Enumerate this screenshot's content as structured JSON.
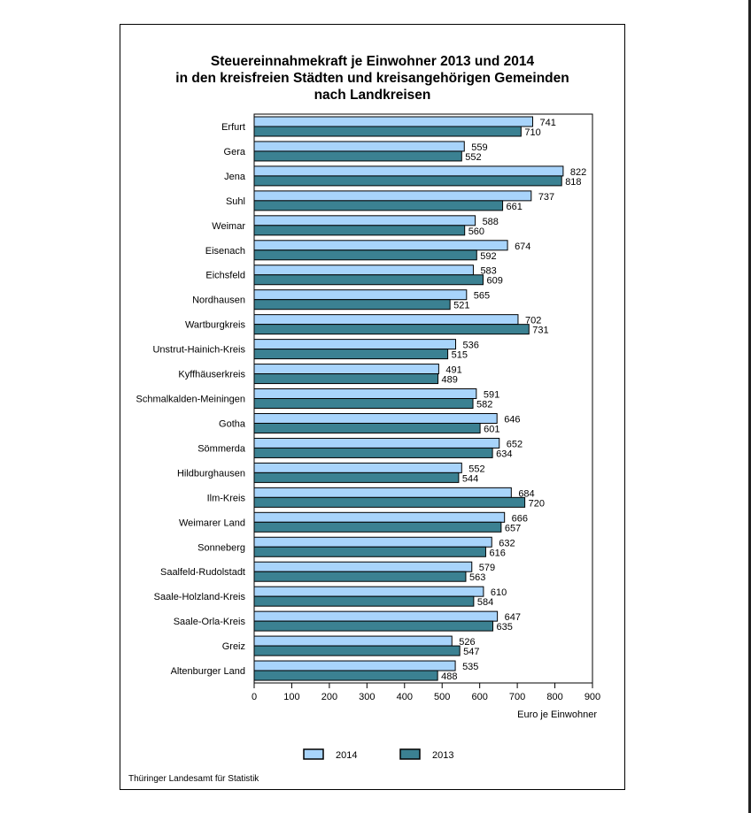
{
  "chart_data": {
    "type": "bar",
    "orientation": "horizontal",
    "title": [
      "Steuereinnahmekraft je Einwohner 2013 und 2014",
      "in den kreisfreien Städten und kreisangehörigen Gemeinden",
      "nach Landkreisen"
    ],
    "xlabel": "Euro je Einwohner",
    "xlim": [
      0,
      900
    ],
    "xticks": [
      0,
      100,
      200,
      300,
      400,
      500,
      600,
      700,
      800,
      900
    ],
    "categories": [
      "Erfurt",
      "Gera",
      "Jena",
      "Suhl",
      "Weimar",
      "Eisenach",
      "Eichsfeld",
      "Nordhausen",
      "Wartburgkreis",
      "Unstrut-Hainich-Kreis",
      "Kyffhäuserkreis",
      "Schmalkalden-Meiningen",
      "Gotha",
      "Sömmerda",
      "Hildburghausen",
      "Ilm-Kreis",
      "Weimarer Land",
      "Sonneberg",
      "Saalfeld-Rudolstadt",
      "Saale-Holzland-Kreis",
      "Saale-Orla-Kreis",
      "Greiz",
      "Altenburger Land"
    ],
    "series": [
      {
        "name": "2014",
        "color": "#a8d4fb",
        "values": [
          741,
          559,
          822,
          737,
          588,
          674,
          583,
          565,
          702,
          536,
          491,
          591,
          646,
          652,
          552,
          684,
          666,
          632,
          579,
          610,
          647,
          526,
          535
        ]
      },
      {
        "name": "2013",
        "color": "#3b8192",
        "values": [
          710,
          552,
          818,
          661,
          560,
          592,
          609,
          521,
          731,
          515,
          489,
          582,
          601,
          634,
          544,
          720,
          657,
          616,
          563,
          584,
          635,
          547,
          488
        ]
      }
    ],
    "legend_position": "bottom",
    "grid": false
  },
  "source": "Thüringer Landesamt für Statistik"
}
